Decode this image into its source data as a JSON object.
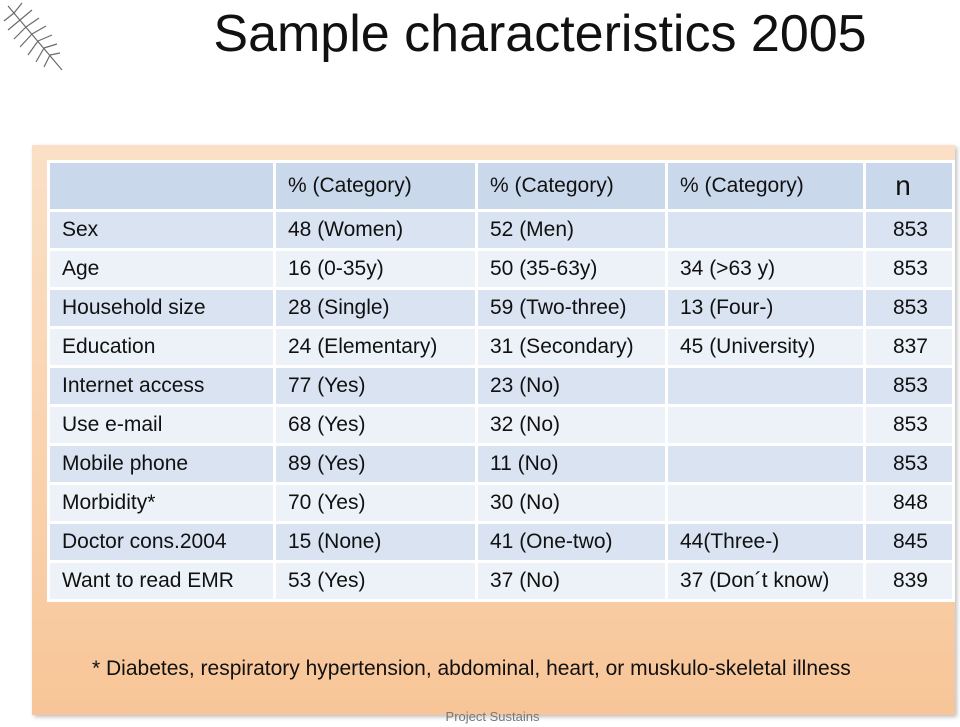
{
  "title": "Sample characteristics 2005",
  "table": {
    "header": [
      null,
      "% (Category)",
      "% (Category)",
      "% (Category)",
      "n"
    ],
    "rows": [
      [
        "Sex",
        "48 (Women)",
        "52 (Men)",
        null,
        853
      ],
      [
        "Age",
        "16 (0-35y)",
        "50 (35-63y)",
        "34 (>63 y)",
        853
      ],
      [
        "Household size",
        "28 (Single)",
        "59 (Two-three)",
        "13 (Four-)",
        853
      ],
      [
        "Education",
        "24 (Elementary)",
        "31 (Secondary)",
        "45 (University)",
        837
      ],
      [
        "Internet access",
        "77 (Yes)",
        "23 (No)",
        null,
        853
      ],
      [
        "Use e-mail",
        "68 (Yes)",
        "32 (No)",
        null,
        853
      ],
      [
        "Mobile phone",
        "89 (Yes)",
        "11 (No)",
        null,
        853
      ],
      [
        "Morbidity*",
        "70 (Yes)",
        "30 (No)",
        null,
        848
      ],
      [
        "Doctor cons.2004",
        "15 (None)",
        "41 (One-two)",
        "44(Three-)",
        845
      ],
      [
        "Want to read EMR",
        "53 (Yes)",
        "37 (No)",
        "37 (Don´t know)",
        839
      ]
    ]
  },
  "footnote": "*  Diabetes, respiratory hypertension, abdominal, heart, or muskulo-skeletal illness",
  "footer": "Project Sustains"
}
